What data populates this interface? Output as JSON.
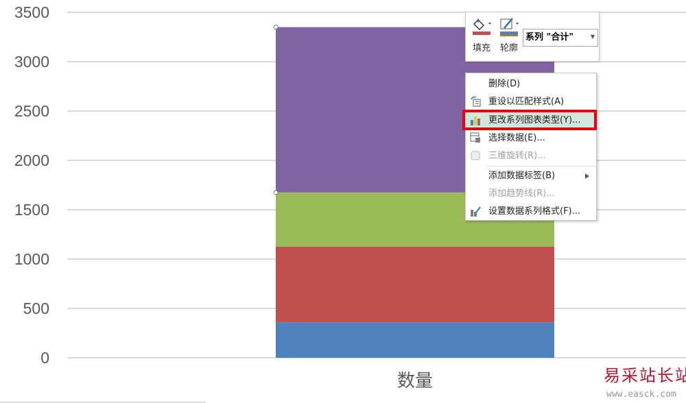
{
  "chart_data": {
    "type": "bar",
    "stacked": true,
    "categories": [
      "数量"
    ],
    "series": [
      {
        "color": "#4f81bd",
        "values": [
          360
        ]
      },
      {
        "color": "#c0504d",
        "values": [
          765
        ]
      },
      {
        "color": "#9bbb59",
        "values": [
          550
        ]
      },
      {
        "name": "合计",
        "color": "#8064a2",
        "values": [
          1675
        ]
      }
    ],
    "ylim": [
      0,
      3500
    ],
    "yticks": [
      "0",
      "500",
      "1000",
      "1500",
      "2000",
      "2500",
      "3000",
      "3500"
    ],
    "grid": true,
    "selected_series": "合计"
  },
  "mini_toolbar": {
    "fill_label": "填充",
    "outline_label": "轮廓",
    "series_select": "系列 \"合计\"",
    "fill_color": "#c0504d",
    "outline_color": "#4f81bd"
  },
  "context_menu": {
    "items": [
      {
        "label": "删除(D)",
        "enabled": true,
        "icon": ""
      },
      {
        "label": "重设以匹配样式(A)",
        "enabled": true,
        "icon": "reset-style-icon"
      },
      {
        "label": "更改系列图表类型(Y)...",
        "enabled": true,
        "icon": "bar-chart-icon",
        "highlighted": true
      },
      {
        "label": "选择数据(E)...",
        "enabled": true,
        "icon": "select-data-icon"
      },
      {
        "label": "三维旋转(R)...",
        "enabled": false,
        "icon": "3d-rotate-icon"
      },
      {
        "label": "添加数据标签(B)",
        "enabled": true,
        "icon": "",
        "submenu": true
      },
      {
        "label": "添加趋势线(R)...",
        "enabled": false,
        "icon": ""
      },
      {
        "label": "设置数据系列格式(F)...",
        "enabled": true,
        "icon": "format-series-icon"
      }
    ]
  },
  "watermark": {
    "title": "易采站长站",
    "url": "www.easck.com"
  }
}
